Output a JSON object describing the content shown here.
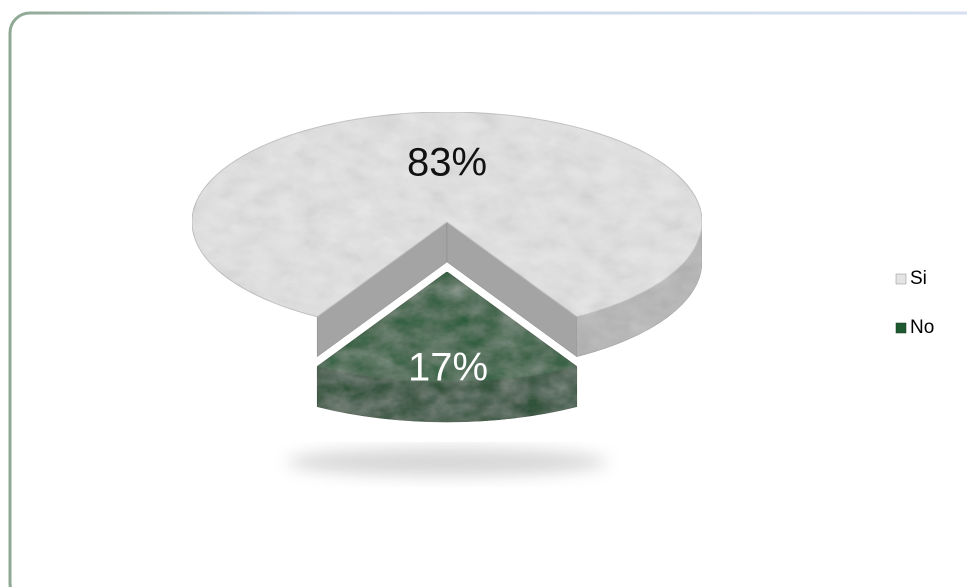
{
  "chart_data": {
    "type": "pie",
    "categories": [
      "Si",
      "No"
    ],
    "values": [
      83,
      17
    ],
    "value_labels": [
      "83%",
      "17%"
    ],
    "colors": [
      "#e4e4e4",
      "#1e5a30"
    ],
    "legend": "right"
  }
}
